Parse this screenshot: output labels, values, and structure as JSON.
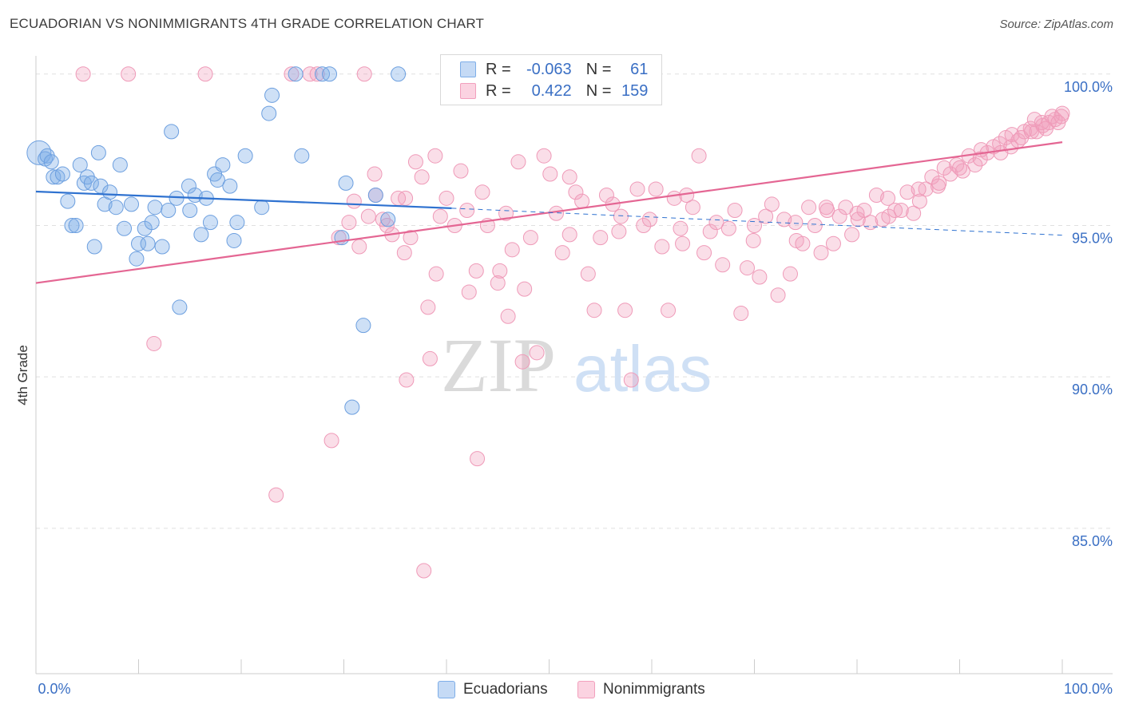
{
  "title": "ECUADORIAN VS NONIMMIGRANTS 4TH GRADE CORRELATION CHART",
  "source": "Source: ZipAtlas.com",
  "watermark": {
    "zip": "ZIP",
    "atlas": "atlas"
  },
  "colors": {
    "blue": "#7eaee8",
    "blue_line": "#2f72d0",
    "pink": "#f2a0bd",
    "pink_line": "#e46693",
    "tick_text": "#3a6fc4"
  },
  "legend": {
    "blue": {
      "r_label": "R =",
      "r_value": "-0.063",
      "n_label": "N =",
      "n_value": "61"
    },
    "pink": {
      "r_label": "R =",
      "r_value": "0.422",
      "n_label": "N =",
      "n_value": "159"
    }
  },
  "chart_data": {
    "type": "scatter",
    "title": "ECUADORIAN VS NONIMMIGRANTS 4TH GRADE CORRELATION CHART",
    "xlabel": "",
    "ylabel": "4th Grade",
    "xlim": [
      0,
      100
    ],
    "ylim": [
      80.2,
      100.6
    ],
    "x_tick_labels": [
      "0.0%",
      "100.0%"
    ],
    "y_ticks": [
      {
        "value": 100,
        "label": "100.0%"
      },
      {
        "value": 95,
        "label": "95.0%"
      },
      {
        "value": 90,
        "label": "90.0%"
      },
      {
        "value": 85,
        "label": "85.0%"
      }
    ],
    "grid": true,
    "legend_placement": "top-center",
    "series": [
      {
        "name": "Ecuadorians",
        "color": "#7eaee8",
        "r": -0.063,
        "n": 61,
        "trend": {
          "x_solid": [
            0,
            40.5
          ],
          "y_solid": [
            96.12,
            95.57
          ],
          "x_dash": [
            40.5,
            100
          ],
          "y_dash": [
            95.57,
            94.68
          ]
        },
        "points": [
          [
            0.3,
            97.4
          ],
          [
            0.9,
            97.2
          ],
          [
            1.1,
            97.3
          ],
          [
            1.5,
            97.1
          ],
          [
            1.7,
            96.6
          ],
          [
            2.1,
            96.6
          ],
          [
            2.6,
            96.7
          ],
          [
            3.1,
            95.8
          ],
          [
            3.5,
            95.0
          ],
          [
            3.9,
            95.0
          ],
          [
            4.3,
            97.0
          ],
          [
            4.7,
            96.4
          ],
          [
            5.0,
            96.6
          ],
          [
            5.4,
            96.4
          ],
          [
            5.7,
            94.3
          ],
          [
            6.1,
            97.4
          ],
          [
            6.3,
            96.3
          ],
          [
            6.7,
            95.7
          ],
          [
            7.2,
            96.1
          ],
          [
            7.8,
            95.6
          ],
          [
            8.2,
            97.0
          ],
          [
            8.6,
            94.9
          ],
          [
            9.3,
            95.7
          ],
          [
            9.8,
            93.9
          ],
          [
            10.0,
            94.4
          ],
          [
            10.6,
            94.9
          ],
          [
            10.9,
            94.4
          ],
          [
            11.3,
            95.1
          ],
          [
            11.6,
            95.6
          ],
          [
            12.3,
            94.3
          ],
          [
            12.9,
            95.5
          ],
          [
            13.2,
            98.1
          ],
          [
            13.7,
            95.9
          ],
          [
            14.0,
            92.3
          ],
          [
            14.9,
            96.3
          ],
          [
            15.0,
            95.5
          ],
          [
            15.5,
            96.0
          ],
          [
            16.1,
            94.7
          ],
          [
            16.6,
            95.9
          ],
          [
            17.0,
            95.1
          ],
          [
            17.4,
            96.7
          ],
          [
            17.7,
            96.5
          ],
          [
            18.2,
            97.0
          ],
          [
            18.9,
            96.3
          ],
          [
            19.3,
            94.5
          ],
          [
            19.6,
            95.1
          ],
          [
            20.4,
            97.3
          ],
          [
            22.0,
            95.6
          ],
          [
            22.7,
            98.7
          ],
          [
            23.0,
            99.3
          ],
          [
            25.3,
            100.0
          ],
          [
            25.9,
            97.3
          ],
          [
            27.9,
            100.0
          ],
          [
            28.6,
            100.0
          ],
          [
            29.8,
            94.6
          ],
          [
            30.2,
            96.4
          ],
          [
            30.8,
            89.0
          ],
          [
            31.9,
            91.7
          ],
          [
            33.1,
            96.0
          ],
          [
            34.3,
            95.2
          ],
          [
            35.3,
            100.0
          ]
        ]
      },
      {
        "name": "Nonimmigrants",
        "color": "#f2a0bd",
        "r": 0.422,
        "n": 159,
        "trend": {
          "x": [
            0,
            100
          ],
          "y": [
            93.1,
            97.75
          ]
        },
        "points": [
          [
            4.6,
            100.0
          ],
          [
            9.0,
            100.0
          ],
          [
            11.5,
            91.1
          ],
          [
            16.5,
            100.0
          ],
          [
            23.4,
            86.1
          ],
          [
            24.9,
            100.0
          ],
          [
            26.7,
            100.0
          ],
          [
            27.4,
            100.0
          ],
          [
            28.8,
            87.9
          ],
          [
            31.0,
            95.8
          ],
          [
            31.5,
            94.3
          ],
          [
            32.0,
            100.0
          ],
          [
            32.4,
            95.3
          ],
          [
            33.1,
            96.0
          ],
          [
            33.8,
            95.2
          ],
          [
            34.2,
            95.0
          ],
          [
            34.7,
            94.7
          ],
          [
            35.3,
            95.9
          ],
          [
            35.9,
            94.1
          ],
          [
            36.5,
            94.6
          ],
          [
            37.0,
            97.1
          ],
          [
            37.6,
            96.6
          ],
          [
            38.2,
            92.3
          ],
          [
            38.9,
            97.3
          ],
          [
            39.4,
            95.3
          ],
          [
            40.0,
            95.9
          ],
          [
            40.6,
            100.0
          ],
          [
            40.8,
            95.0
          ],
          [
            41.4,
            96.8
          ],
          [
            42.2,
            92.8
          ],
          [
            42.9,
            93.5
          ],
          [
            43.5,
            96.1
          ],
          [
            44.0,
            95.0
          ],
          [
            44.6,
            100.0
          ],
          [
            45.2,
            93.5
          ],
          [
            45.8,
            95.4
          ],
          [
            46.4,
            94.2
          ],
          [
            47.0,
            97.1
          ],
          [
            47.6,
            92.9
          ],
          [
            48.2,
            94.6
          ],
          [
            48.8,
            90.8
          ],
          [
            49.5,
            97.3
          ],
          [
            50.1,
            96.7
          ],
          [
            50.7,
            95.4
          ],
          [
            51.3,
            94.1
          ],
          [
            52.0,
            96.6
          ],
          [
            52.6,
            96.1
          ],
          [
            53.2,
            95.8
          ],
          [
            53.8,
            93.4
          ],
          [
            54.4,
            92.2
          ],
          [
            55.0,
            94.6
          ],
          [
            55.6,
            96.0
          ],
          [
            56.2,
            95.7
          ],
          [
            56.8,
            94.8
          ],
          [
            57.4,
            92.2
          ],
          [
            58.0,
            89.9
          ],
          [
            58.6,
            96.2
          ],
          [
            59.2,
            95.0
          ],
          [
            59.8,
            95.2
          ],
          [
            60.4,
            96.2
          ],
          [
            61.0,
            94.3
          ],
          [
            61.6,
            92.2
          ],
          [
            62.2,
            95.9
          ],
          [
            62.8,
            94.9
          ],
          [
            63.4,
            96.0
          ],
          [
            64.0,
            95.6
          ],
          [
            64.6,
            97.3
          ],
          [
            65.1,
            94.1
          ],
          [
            65.7,
            94.8
          ],
          [
            66.3,
            95.1
          ],
          [
            66.9,
            93.7
          ],
          [
            67.5,
            94.9
          ],
          [
            68.1,
            95.5
          ],
          [
            68.7,
            92.1
          ],
          [
            69.3,
            93.6
          ],
          [
            69.9,
            94.5
          ],
          [
            70.5,
            93.3
          ],
          [
            71.1,
            95.3
          ],
          [
            71.7,
            95.7
          ],
          [
            72.3,
            92.7
          ],
          [
            72.9,
            95.2
          ],
          [
            73.5,
            93.4
          ],
          [
            74.1,
            94.5
          ],
          [
            74.7,
            94.4
          ],
          [
            75.3,
            95.6
          ],
          [
            75.9,
            95.0
          ],
          [
            76.5,
            94.1
          ],
          [
            77.1,
            95.5
          ],
          [
            77.7,
            94.4
          ],
          [
            78.3,
            95.3
          ],
          [
            78.9,
            95.6
          ],
          [
            79.5,
            94.7
          ],
          [
            80.1,
            95.2
          ],
          [
            80.7,
            95.5
          ],
          [
            81.3,
            95.1
          ],
          [
            81.9,
            96.0
          ],
          [
            82.5,
            95.2
          ],
          [
            83.1,
            95.3
          ],
          [
            83.7,
            95.5
          ],
          [
            84.3,
            95.5
          ],
          [
            84.9,
            96.1
          ],
          [
            85.5,
            95.4
          ],
          [
            86.1,
            95.8
          ],
          [
            86.7,
            96.2
          ],
          [
            87.3,
            96.6
          ],
          [
            87.9,
            96.3
          ],
          [
            88.5,
            96.9
          ],
          [
            89.1,
            96.7
          ],
          [
            89.7,
            97.0
          ],
          [
            90.3,
            96.8
          ],
          [
            90.9,
            97.3
          ],
          [
            91.5,
            97.0
          ],
          [
            92.1,
            97.5
          ],
          [
            92.7,
            97.4
          ],
          [
            93.3,
            97.6
          ],
          [
            93.9,
            97.7
          ],
          [
            94.5,
            97.9
          ],
          [
            95.1,
            98.0
          ],
          [
            95.7,
            97.8
          ],
          [
            96.3,
            98.1
          ],
          [
            96.9,
            98.2
          ],
          [
            97.5,
            98.1
          ],
          [
            98.1,
            98.3
          ],
          [
            98.7,
            98.4
          ],
          [
            99.3,
            98.5
          ],
          [
            99.9,
            98.6
          ],
          [
            100.0,
            98.7
          ],
          [
            29.5,
            94.6
          ],
          [
            30.5,
            95.1
          ],
          [
            33.0,
            96.7
          ],
          [
            36.0,
            95.9
          ],
          [
            39.0,
            93.4
          ],
          [
            42.0,
            95.5
          ],
          [
            46.0,
            92.0
          ],
          [
            52.0,
            94.7
          ],
          [
            57.0,
            95.3
          ],
          [
            63.0,
            94.4
          ],
          [
            70.0,
            95.0
          ],
          [
            74.0,
            95.1
          ],
          [
            77.0,
            95.6
          ],
          [
            80.0,
            95.4
          ],
          [
            83.0,
            95.9
          ],
          [
            86.0,
            96.2
          ],
          [
            88.0,
            96.4
          ],
          [
            90.0,
            96.9
          ],
          [
            92.0,
            97.2
          ],
          [
            94.0,
            97.4
          ],
          [
            95.0,
            97.6
          ],
          [
            96.0,
            97.9
          ],
          [
            97.0,
            98.1
          ],
          [
            98.0,
            98.4
          ],
          [
            99.0,
            98.6
          ],
          [
            97.3,
            98.5
          ],
          [
            98.4,
            98.2
          ],
          [
            99.6,
            98.4
          ],
          [
            37.8,
            83.6
          ],
          [
            38.4,
            90.6
          ],
          [
            36.1,
            89.9
          ],
          [
            43.0,
            87.3
          ],
          [
            45.0,
            93.1
          ],
          [
            47.4,
            90.5
          ]
        ]
      }
    ]
  }
}
